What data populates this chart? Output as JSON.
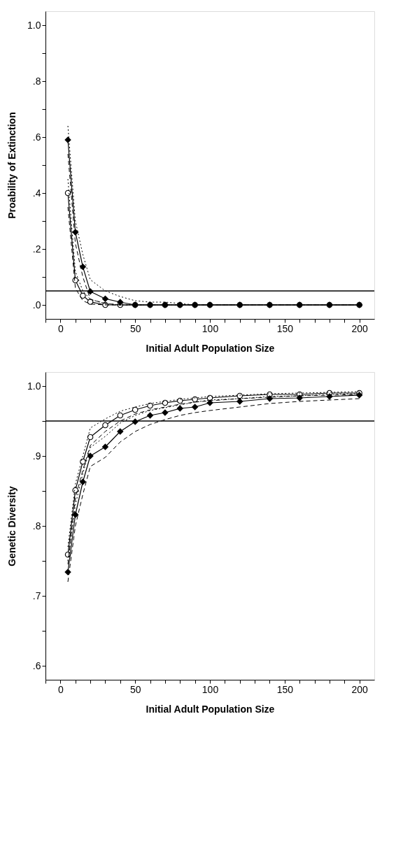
{
  "chart_data": [
    {
      "type": "line",
      "xlabel": "Initial Adult Population Size",
      "ylabel": "Proability of Extinction",
      "grid": false,
      "x": [
        5,
        10,
        15,
        20,
        30,
        40,
        50,
        60,
        70,
        80,
        90,
        100,
        120,
        140,
        160,
        180,
        200
      ],
      "xlim": [
        -10,
        210
      ],
      "xticks": [
        {
          "value": -10,
          "label": null
        },
        0,
        {
          "value": 10,
          "label": null
        },
        {
          "value": 20,
          "label": null
        },
        {
          "value": 30,
          "label": null
        },
        {
          "value": 40,
          "label": null
        },
        50,
        {
          "value": 60,
          "label": null
        },
        {
          "value": 70,
          "label": null
        },
        {
          "value": 80,
          "label": null
        },
        {
          "value": 90,
          "label": null
        },
        100,
        {
          "value": 110,
          "label": null
        },
        {
          "value": 120,
          "label": null
        },
        {
          "value": 130,
          "label": null
        },
        {
          "value": 140,
          "label": null
        },
        150,
        {
          "value": 160,
          "label": null
        },
        {
          "value": 170,
          "label": null
        },
        {
          "value": 180,
          "label": null
        },
        {
          "value": 190,
          "label": null
        },
        200
      ],
      "ylim": [
        -0.05,
        1.05
      ],
      "yticks": [
        {
          "value": 0,
          "label": ".0"
        },
        {
          "value": 0.1,
          "label": null
        },
        {
          "value": 0.2,
          "label": ".2"
        },
        {
          "value": 0.3,
          "label": null
        },
        {
          "value": 0.4,
          "label": ".4"
        },
        {
          "value": 0.5,
          "label": null
        },
        {
          "value": 0.6,
          "label": ".6"
        },
        {
          "value": 0.7,
          "label": null
        },
        {
          "value": 0.8,
          "label": ".8"
        },
        {
          "value": 0.9,
          "label": null
        },
        {
          "value": 1.0,
          "label": "1.0"
        }
      ],
      "ref_lines": [
        {
          "axis": "y",
          "value": 0.05,
          "color": "#000000",
          "line_style": "solid"
        }
      ],
      "series": [
        {
          "color": "#000000",
          "marker": "circle",
          "line_style": "solid",
          "values": [
            0.4,
            0.088,
            0.033,
            0.011,
            0,
            0,
            0,
            0,
            0,
            0,
            0,
            0,
            0,
            0,
            0,
            0,
            0
          ]
        },
        {
          "color": "#000000",
          "marker": "diamond",
          "line_style": "solid",
          "values": [
            0.59,
            0.26,
            0.136,
            0.048,
            0.022,
            0.01,
            0,
            0,
            0,
            0,
            0,
            0,
            0,
            0,
            0,
            0,
            0
          ]
        },
        {
          "color": "#000000",
          "marker": "none",
          "line_style": "dashed",
          "values": [
            0.35,
            0.06,
            0.015,
            0.003,
            0,
            0,
            0,
            0,
            0,
            0,
            0,
            0,
            0,
            0,
            0,
            0,
            0
          ]
        },
        {
          "color": "#000000",
          "marker": "none",
          "line_style": "dotted",
          "values": [
            0.45,
            0.12,
            0.05,
            0.02,
            0.005,
            0,
            0,
            0,
            0,
            0,
            0,
            0,
            0,
            0,
            0,
            0,
            0
          ]
        },
        {
          "color": "#000000",
          "marker": "none",
          "line_style": "dashed",
          "values": [
            0.54,
            0.22,
            0.1,
            0.02,
            0.005,
            0,
            0,
            0,
            0,
            0,
            0,
            0,
            0,
            0,
            0,
            0,
            0
          ]
        },
        {
          "color": "#000000",
          "marker": "none",
          "line_style": "dotted",
          "values": [
            0.64,
            0.3,
            0.18,
            0.09,
            0.05,
            0.03,
            0.015,
            0.01,
            0.01,
            0.005,
            0,
            0,
            0,
            0,
            0,
            0,
            0
          ]
        }
      ]
    },
    {
      "type": "line",
      "xlabel": "Initial Adult Population Size",
      "ylabel": "Genetic Diversity",
      "grid": false,
      "x": [
        5,
        10,
        15,
        20,
        30,
        40,
        50,
        60,
        70,
        80,
        90,
        100,
        120,
        140,
        160,
        180,
        200
      ],
      "xlim": [
        -10,
        210
      ],
      "xticks": [
        {
          "value": -10,
          "label": null
        },
        0,
        {
          "value": 10,
          "label": null
        },
        {
          "value": 20,
          "label": null
        },
        {
          "value": 30,
          "label": null
        },
        {
          "value": 40,
          "label": null
        },
        50,
        {
          "value": 60,
          "label": null
        },
        {
          "value": 70,
          "label": null
        },
        {
          "value": 80,
          "label": null
        },
        {
          "value": 90,
          "label": null
        },
        100,
        {
          "value": 110,
          "label": null
        },
        {
          "value": 120,
          "label": null
        },
        {
          "value": 130,
          "label": null
        },
        {
          "value": 140,
          "label": null
        },
        150,
        {
          "value": 160,
          "label": null
        },
        {
          "value": 170,
          "label": null
        },
        {
          "value": 180,
          "label": null
        },
        {
          "value": 190,
          "label": null
        },
        200
      ],
      "ylim": [
        0.58,
        1.02
      ],
      "yticks": [
        {
          "value": 0.6,
          "label": ".6"
        },
        {
          "value": 0.65,
          "label": null
        },
        {
          "value": 0.7,
          "label": ".7"
        },
        {
          "value": 0.75,
          "label": null
        },
        {
          "value": 0.8,
          "label": ".8"
        },
        {
          "value": 0.85,
          "label": null
        },
        {
          "value": 0.9,
          "label": ".9"
        },
        {
          "value": 0.95,
          "label": null
        },
        {
          "value": 1.0,
          "label": "1.0"
        }
      ],
      "ref_lines": [
        {
          "axis": "y",
          "value": 0.95,
          "color": "#000000",
          "line_style": "solid"
        }
      ],
      "series": [
        {
          "color": "#000000",
          "marker": "circle",
          "line_style": "solid",
          "values": [
            0.759,
            0.851,
            0.892,
            0.927,
            0.944,
            0.958,
            0.966,
            0.972,
            0.976,
            0.979,
            0.981,
            0.983,
            0.986,
            0.988,
            0.988,
            0.99,
            0.99
          ]
        },
        {
          "color": "#000000",
          "marker": "diamond",
          "line_style": "solid",
          "values": [
            0.734,
            0.816,
            0.863,
            0.9,
            0.913,
            0.935,
            0.949,
            0.958,
            0.962,
            0.968,
            0.97,
            0.976,
            0.978,
            0.982,
            0.983,
            0.985,
            0.987
          ]
        },
        {
          "color": "#000000",
          "marker": "none",
          "line_style": "dashed",
          "values": [
            0.745,
            0.84,
            0.88,
            0.915,
            0.935,
            0.95,
            0.96,
            0.966,
            0.97,
            0.974,
            0.977,
            0.979,
            0.982,
            0.984,
            0.986,
            0.987,
            0.988
          ]
        },
        {
          "color": "#000000",
          "marker": "none",
          "line_style": "dotted",
          "values": [
            0.77,
            0.86,
            0.9,
            0.94,
            0.953,
            0.964,
            0.97,
            0.975,
            0.978,
            0.981,
            0.983,
            0.985,
            0.987,
            0.989,
            0.99,
            0.991,
            0.992
          ]
        },
        {
          "color": "#000000",
          "marker": "none",
          "line_style": "dashed",
          "values": [
            0.72,
            0.8,
            0.845,
            0.885,
            0.898,
            0.92,
            0.935,
            0.945,
            0.952,
            0.958,
            0.962,
            0.965,
            0.97,
            0.975,
            0.978,
            0.98,
            0.982
          ]
        },
        {
          "color": "#000000",
          "marker": "none",
          "line_style": "dotted",
          "values": [
            0.75,
            0.83,
            0.875,
            0.912,
            0.928,
            0.947,
            0.958,
            0.965,
            0.969,
            0.973,
            0.977,
            0.98,
            0.982,
            0.985,
            0.986,
            0.988,
            0.989
          ]
        }
      ]
    }
  ]
}
